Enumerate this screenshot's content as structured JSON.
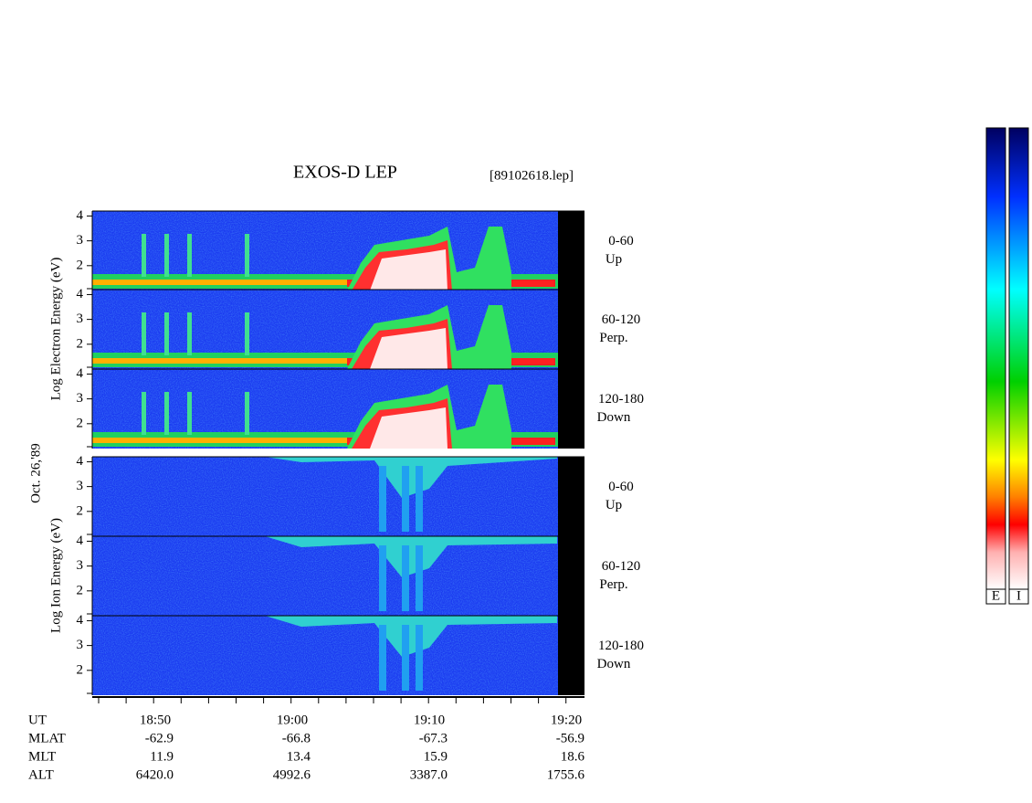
{
  "header": {
    "title": "EXOS-D LEP",
    "file": "[89102618.lep]"
  },
  "date": "Oct. 26,'89",
  "energy_ticks": [
    "2",
    "3",
    "4"
  ],
  "electron": {
    "axis_label": "Log Electron Energy (eV)",
    "panels": [
      {
        "range": "0-60",
        "direction": "Up"
      },
      {
        "range": "60-120",
        "direction": "Perp."
      },
      {
        "range": "120-180",
        "direction": "Down"
      }
    ]
  },
  "ion": {
    "axis_label": "Log Ion Energy (eV)",
    "panels": [
      {
        "range": "0-60",
        "direction": "Up"
      },
      {
        "range": "60-120",
        "direction": "Perp."
      },
      {
        "range": "120-180",
        "direction": "Down"
      }
    ]
  },
  "table": {
    "row_labels": [
      "UT",
      "MLAT",
      "MLT",
      "ALT"
    ],
    "rows": [
      [
        "18:50",
        "19:00",
        "19:10",
        "19:20"
      ],
      [
        "-62.9",
        "-66.8",
        "-67.3",
        "-56.9"
      ],
      [
        "11.9",
        "13.4",
        "15.9",
        "18.6"
      ],
      [
        "6420.0",
        "4992.6",
        "3387.0",
        "1755.6"
      ]
    ]
  },
  "colorbars": [
    "E",
    "I"
  ]
}
